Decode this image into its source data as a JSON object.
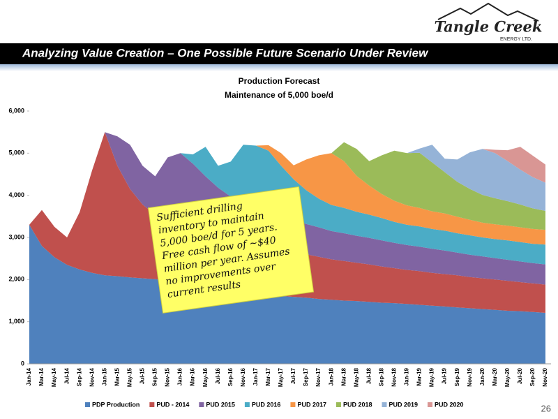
{
  "header": {
    "title": "Analyzing Value Creation – One Possible Future Scenario Under Review",
    "logo_name": "Tangle Creek",
    "logo_sub": "ENERGY LTD.",
    "page_number": "26"
  },
  "chart_data": {
    "type": "area",
    "stacked": true,
    "title": "Production Forecast",
    "subtitle": "Maintenance of 5,000 boe/d",
    "categories": [
      "Jan-14",
      "Mar-14",
      "May-14",
      "Jul-14",
      "Sep-14",
      "Nov-14",
      "Jan-15",
      "Mar-15",
      "May-15",
      "Jul-15",
      "Sep-15",
      "Nov-15",
      "Jan-16",
      "Mar-16",
      "May-16",
      "Jul-16",
      "Sep-16",
      "Nov-16",
      "Jan-17",
      "Mar-17",
      "May-17",
      "Jul-17",
      "Sep-17",
      "Nov-17",
      "Jan-18",
      "Mar-18",
      "May-18",
      "Jul-18",
      "Sep-18",
      "Nov-18",
      "Jan-19",
      "Mar-19",
      "May-19",
      "Jul-19",
      "Sep-19",
      "Nov-19",
      "Jan-20",
      "Mar-20",
      "May-20",
      "Jul-20",
      "Sep-20",
      "Nov-20"
    ],
    "series": [
      {
        "name": "PDP Production",
        "color": "#4f81bd",
        "values": [
          3300,
          2800,
          2530,
          2350,
          2240,
          2160,
          2100,
          2080,
          2050,
          2030,
          2010,
          1980,
          1960,
          1910,
          1860,
          1810,
          1760,
          1710,
          1660,
          1640,
          1610,
          1590,
          1570,
          1540,
          1520,
          1500,
          1490,
          1470,
          1450,
          1440,
          1420,
          1400,
          1380,
          1360,
          1340,
          1320,
          1300,
          1280,
          1260,
          1250,
          1230,
          1210
        ]
      },
      {
        "name": "PUD - 2014",
        "color": "#c0504d",
        "values": [
          0,
          850,
          720,
          650,
          1360,
          2440,
          3400,
          2620,
          2100,
          1750,
          1530,
          1380,
          1270,
          1260,
          1240,
          1230,
          1220,
          1200,
          1190,
          1150,
          1120,
          1080,
          1030,
          1000,
          960,
          940,
          910,
          890,
          860,
          830,
          810,
          800,
          780,
          770,
          760,
          740,
          730,
          720,
          710,
          690,
          680,
          670
        ]
      },
      {
        "name": "PUD 2015",
        "color": "#8064a2",
        "values": [
          0,
          0,
          0,
          0,
          0,
          0,
          0,
          700,
          1050,
          920,
          910,
          1540,
          1770,
          1580,
          1350,
          1140,
          990,
          890,
          820,
          800,
          770,
          750,
          720,
          700,
          670,
          660,
          640,
          630,
          620,
          600,
          590,
          580,
          570,
          560,
          540,
          530,
          520,
          510,
          500,
          490,
          480,
          480
        ]
      },
      {
        "name": "PUD 2016",
        "color": "#4bacc6",
        "values": [
          0,
          0,
          0,
          0,
          0,
          0,
          0,
          0,
          0,
          0,
          0,
          0,
          0,
          220,
          700,
          520,
          830,
          1400,
          1510,
          1470,
          1200,
          960,
          800,
          680,
          620,
          600,
          570,
          550,
          530,
          500,
          480,
          480,
          470,
          470,
          460,
          460,
          450,
          450,
          460,
          460,
          460,
          470
        ]
      },
      {
        "name": "PUD 2017",
        "color": "#f79646",
        "values": [
          0,
          0,
          0,
          0,
          0,
          0,
          0,
          0,
          0,
          0,
          0,
          0,
          0,
          0,
          0,
          0,
          0,
          0,
          0,
          130,
          300,
          330,
          730,
          1030,
          1230,
          1110,
          850,
          690,
          570,
          500,
          460,
          440,
          420,
          410,
          390,
          370,
          350,
          350,
          350,
          350,
          350,
          350
        ]
      },
      {
        "name": "PUD 2018",
        "color": "#9bbb59",
        "values": [
          0,
          0,
          0,
          0,
          0,
          0,
          0,
          0,
          0,
          0,
          0,
          0,
          0,
          0,
          0,
          0,
          0,
          0,
          0,
          0,
          0,
          0,
          0,
          0,
          0,
          450,
          640,
          580,
          920,
          1190,
          1240,
          1310,
          1160,
          980,
          830,
          730,
          660,
          620,
          580,
          540,
          490,
          450
        ]
      },
      {
        "name": "PUD 2019",
        "color": "#95b3d7",
        "values": [
          0,
          0,
          0,
          0,
          0,
          0,
          0,
          0,
          0,
          0,
          0,
          0,
          0,
          0,
          0,
          0,
          0,
          0,
          0,
          0,
          0,
          0,
          0,
          0,
          0,
          0,
          0,
          0,
          0,
          0,
          0,
          100,
          420,
          320,
          530,
          870,
          1090,
          1070,
          950,
          830,
          740,
          670
        ]
      },
      {
        "name": "PUD 2020",
        "color": "#d99694",
        "values": [
          0,
          0,
          0,
          0,
          0,
          0,
          0,
          0,
          0,
          0,
          0,
          0,
          0,
          0,
          0,
          0,
          0,
          0,
          0,
          0,
          0,
          0,
          0,
          0,
          0,
          0,
          0,
          0,
          0,
          0,
          0,
          0,
          0,
          0,
          0,
          0,
          0,
          80,
          260,
          540,
          510,
          430
        ]
      }
    ],
    "ylim": [
      0,
      6000
    ],
    "yticks": [
      0,
      {
        "value": 1000,
        "label": "1,000"
      },
      {
        "value": 2000,
        "label": "2,000"
      },
      {
        "value": 3000,
        "label": "3,000"
      },
      {
        "value": 4000,
        "label": "4,000"
      },
      {
        "value": 5000,
        "label": "5,000"
      },
      {
        "value": 6000,
        "label": "6,000"
      }
    ],
    "grid": false,
    "legend": "bottom",
    "annotation": [
      "Sufficient drilling",
      "inventory to maintain",
      "5,000 boe/d for 5 years.",
      "Free cash flow of ~$40",
      "million per year.  Assumes",
      "no improvements over",
      "current results"
    ]
  }
}
